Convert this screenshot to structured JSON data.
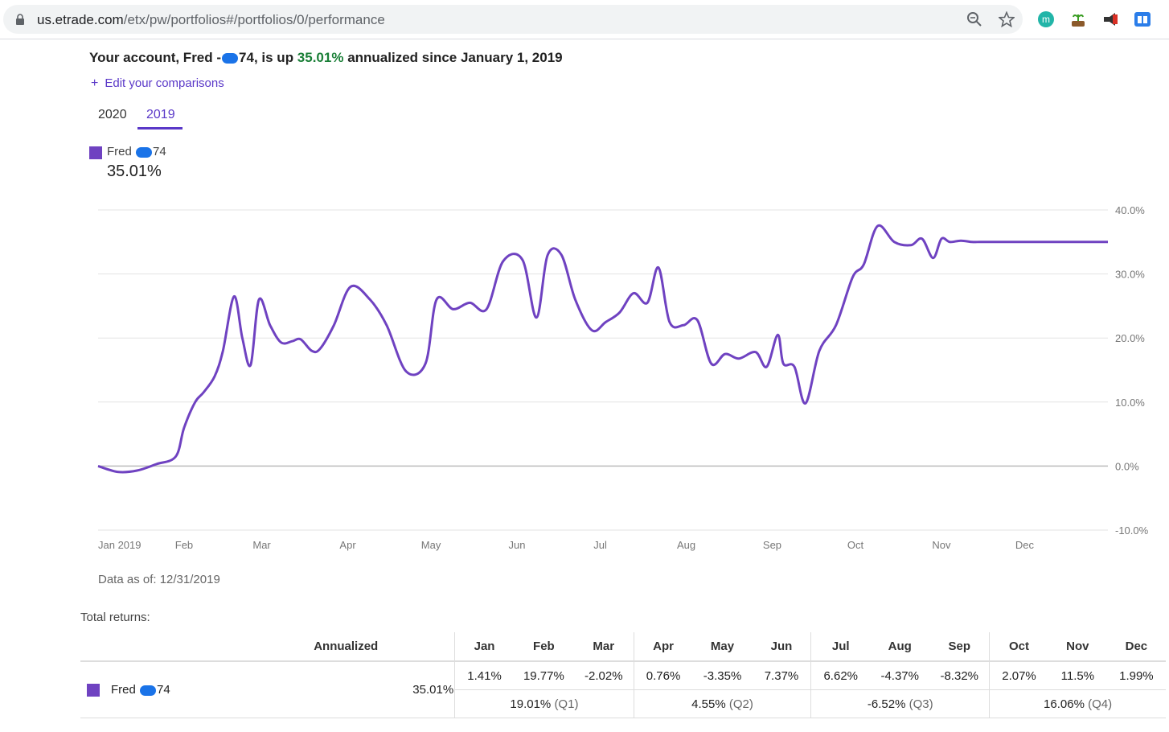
{
  "browser": {
    "url_host": "us.etrade.com",
    "url_path": "/etx/pw/portfolios#/portfolios/0/performance",
    "ext_m_letter": "m"
  },
  "header": {
    "headline_prefix": "Your account, Fred -",
    "headline_mid": "74, is up ",
    "headline_pct": "35.01%",
    "headline_suffix": " annualized since January 1, 2019",
    "accent_color": "#6f42c1",
    "gain_color": "#1a7f37"
  },
  "edit_link": {
    "icon": "+",
    "label": "Edit your comparisons"
  },
  "tabs": [
    {
      "label": "2020",
      "active": false
    },
    {
      "label": "2019",
      "active": true
    }
  ],
  "legend": {
    "name_prefix": "Fred ",
    "name_suffix": "74",
    "value": "35.01%"
  },
  "chart_data": {
    "type": "line",
    "title": "",
    "xlabel": "",
    "ylabel": "",
    "ylim": [
      -10,
      40
    ],
    "grid": true,
    "y_ticks": [
      "40.0%",
      "30.0%",
      "20.0%",
      "10.0%",
      "0.0%",
      "-10.0%"
    ],
    "x_ticks": [
      "Jan 2019",
      "Feb",
      "Mar",
      "Apr",
      "May",
      "Jun",
      "Jul",
      "Aug",
      "Sep",
      "Oct",
      "Nov",
      "Dec"
    ],
    "series": [
      {
        "name": "Fred 74",
        "color": "#6f42c1",
        "x": [
          "2019-01-01",
          "2019-01-08",
          "2019-01-15",
          "2019-01-22",
          "2019-01-29",
          "2019-02-01",
          "2019-02-05",
          "2019-02-08",
          "2019-02-12",
          "2019-02-15",
          "2019-02-19",
          "2019-02-22",
          "2019-02-25",
          "2019-02-28",
          "2019-03-04",
          "2019-03-08",
          "2019-03-12",
          "2019-03-15",
          "2019-03-19",
          "2019-03-22",
          "2019-03-27",
          "2019-04-02",
          "2019-04-09",
          "2019-04-15",
          "2019-04-22",
          "2019-04-29",
          "2019-05-03",
          "2019-05-09",
          "2019-05-15",
          "2019-05-21",
          "2019-05-27",
          "2019-06-03",
          "2019-06-08",
          "2019-06-12",
          "2019-06-17",
          "2019-06-22",
          "2019-06-28",
          "2019-07-03",
          "2019-07-08",
          "2019-07-13",
          "2019-07-18",
          "2019-07-22",
          "2019-07-26",
          "2019-07-31",
          "2019-08-05",
          "2019-08-10",
          "2019-08-15",
          "2019-08-20",
          "2019-08-26",
          "2019-08-30",
          "2019-09-03",
          "2019-09-05",
          "2019-09-09",
          "2019-09-13",
          "2019-09-18",
          "2019-09-24",
          "2019-09-30",
          "2019-10-04",
          "2019-10-09",
          "2019-10-15",
          "2019-10-21",
          "2019-10-25",
          "2019-10-29",
          "2019-11-01",
          "2019-11-04",
          "2019-11-08",
          "2019-11-12",
          "2019-11-15",
          "2019-11-19",
          "2019-11-22",
          "2019-11-26",
          "2019-11-29",
          "2019-12-02",
          "2019-12-04",
          "2019-12-06",
          "2019-12-09",
          "2019-12-11",
          "2019-12-13",
          "2019-12-17",
          "2019-12-19",
          "2019-12-23",
          "2019-12-27",
          "2019-12-31"
        ],
        "y": [
          0,
          -0.9,
          -0.7,
          0.3,
          1.5,
          6,
          10,
          11.5,
          14,
          18,
          26.5,
          20,
          15.8,
          26,
          22,
          19.3,
          19.5,
          19.8,
          18,
          18.3,
          22,
          28,
          26,
          22,
          14.8,
          16,
          26,
          24.5,
          25.5,
          24.5,
          32,
          32.2,
          23.2,
          32.9,
          33,
          26,
          21.2,
          22.5,
          24,
          27,
          25.5,
          31,
          22.5,
          22,
          22.8,
          16,
          17.5,
          16.8,
          17.8,
          15.5,
          20.5,
          16,
          15.5,
          9.8,
          18,
          22,
          29.5,
          31.5,
          37.5,
          35,
          34.5,
          35.5,
          32.5,
          35.5,
          35,
          35.2,
          35,
          35.01,
          35,
          35,
          35,
          35,
          35,
          35,
          35,
          35,
          35,
          35,
          35,
          35,
          35,
          35,
          35.01
        ]
      }
    ]
  },
  "as_of": "Data as of: 12/31/2019",
  "totals": {
    "label": "Total returns:",
    "annualized_header": "Annualized",
    "months": [
      "Jan",
      "Feb",
      "Mar",
      "Apr",
      "May",
      "Jun",
      "Jul",
      "Aug",
      "Sep",
      "Oct",
      "Nov",
      "Dec"
    ],
    "row": {
      "name_prefix": "Fred ",
      "name_suffix": "74",
      "annualized": "35.01%",
      "monthly": [
        "1.41%",
        "19.77%",
        "-2.02%",
        "0.76%",
        "-3.35%",
        "7.37%",
        "6.62%",
        "-4.37%",
        "-8.32%",
        "2.07%",
        "11.5%",
        "1.99%"
      ],
      "quarters": [
        {
          "value": "19.01%",
          "label": "(Q1)"
        },
        {
          "value": "4.55%",
          "label": "(Q2)"
        },
        {
          "value": "-6.52%",
          "label": "(Q3)"
        },
        {
          "value": "16.06%",
          "label": "(Q4)"
        }
      ]
    }
  }
}
